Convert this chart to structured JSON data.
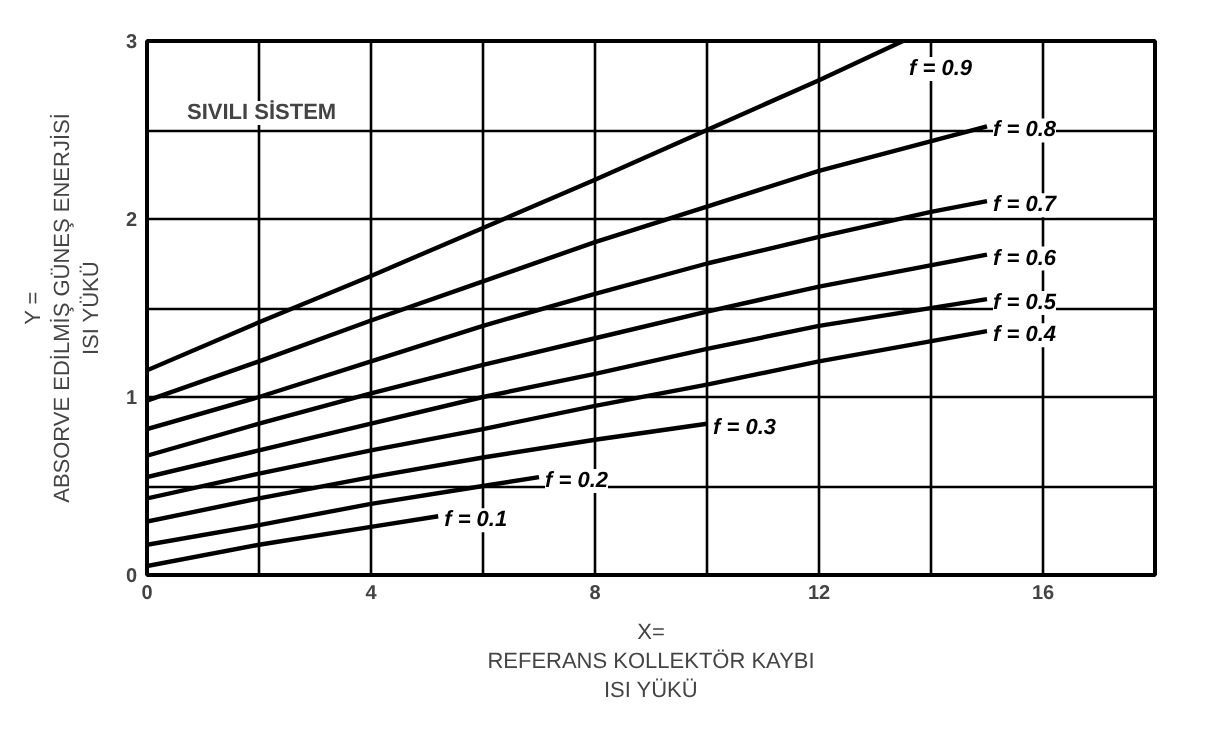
{
  "chart_data": {
    "type": "line",
    "title": null,
    "xlabel": "X=\nREFERANS KOLLEKTÖR KAYBI\nISI YÜKÜ",
    "ylabel": "Y =\nABSORVE EDİLMİŞ GÜNEŞ ENERJİSİ\nISI YÜKÜ",
    "annotations": [
      "SIVILI SİSTEM"
    ],
    "xlim": [
      0,
      18
    ],
    "ylim": [
      0,
      3
    ],
    "xticks": [
      0,
      {
        "value": 2,
        "label": null
      },
      4,
      {
        "value": 6,
        "label": null
      },
      8,
      {
        "value": 10,
        "label": null
      },
      12,
      {
        "value": 14,
        "label": null
      },
      16
    ],
    "yticks": [
      0,
      {
        "value": 0.5,
        "label": null
      },
      1,
      {
        "value": 1.5,
        "label": null
      },
      2,
      {
        "value": 2.5,
        "label": null
      },
      3
    ],
    "grid": true,
    "legend": false,
    "line_style": "solid",
    "marker": "none",
    "series": [
      {
        "name": "f = 0.9",
        "color": "#000000",
        "x": [
          0,
          2,
          4,
          6,
          8,
          10,
          12,
          13.5
        ],
        "values": [
          1.15,
          1.42,
          1.68,
          1.95,
          2.22,
          2.5,
          2.78,
          3.0
        ]
      },
      {
        "name": "f = 0.8",
        "color": "#000000",
        "x": [
          0,
          2,
          4,
          6,
          8,
          10,
          12,
          15
        ],
        "values": [
          0.98,
          1.2,
          1.43,
          1.65,
          1.87,
          2.07,
          2.27,
          2.52
        ]
      },
      {
        "name": "f = 0.7",
        "color": "#000000",
        "x": [
          0,
          2,
          4,
          6,
          8,
          10,
          12,
          14,
          15
        ],
        "values": [
          0.82,
          1.0,
          1.2,
          1.4,
          1.58,
          1.75,
          1.9,
          2.04,
          2.1
        ]
      },
      {
        "name": "f = 0.6",
        "color": "#000000",
        "x": [
          0,
          2,
          4,
          6,
          8,
          10,
          12,
          15
        ],
        "values": [
          0.67,
          0.85,
          1.02,
          1.18,
          1.33,
          1.48,
          1.62,
          1.8
        ]
      },
      {
        "name": "f = 0.5",
        "color": "#000000",
        "x": [
          0,
          2,
          4,
          6,
          8,
          10,
          12,
          15
        ],
        "values": [
          0.55,
          0.7,
          0.85,
          1.0,
          1.13,
          1.27,
          1.4,
          1.55
        ]
      },
      {
        "name": "f = 0.4",
        "color": "#000000",
        "x": [
          0,
          2,
          4,
          6,
          8,
          10,
          12,
          15
        ],
        "values": [
          0.43,
          0.57,
          0.7,
          0.82,
          0.95,
          1.07,
          1.2,
          1.37
        ]
      },
      {
        "name": "f = 0.3",
        "color": "#000000",
        "x": [
          0,
          2,
          4,
          6,
          8,
          10
        ],
        "values": [
          0.3,
          0.43,
          0.55,
          0.66,
          0.76,
          0.85
        ]
      },
      {
        "name": "f = 0.2",
        "color": "#000000",
        "x": [
          0,
          2,
          4,
          6,
          7
        ],
        "values": [
          0.17,
          0.28,
          0.4,
          0.5,
          0.55
        ]
      },
      {
        "name": "f = 0.1",
        "color": "#000000",
        "x": [
          0,
          2,
          4,
          5.2
        ],
        "values": [
          0.05,
          0.17,
          0.27,
          0.33
        ]
      }
    ]
  }
}
